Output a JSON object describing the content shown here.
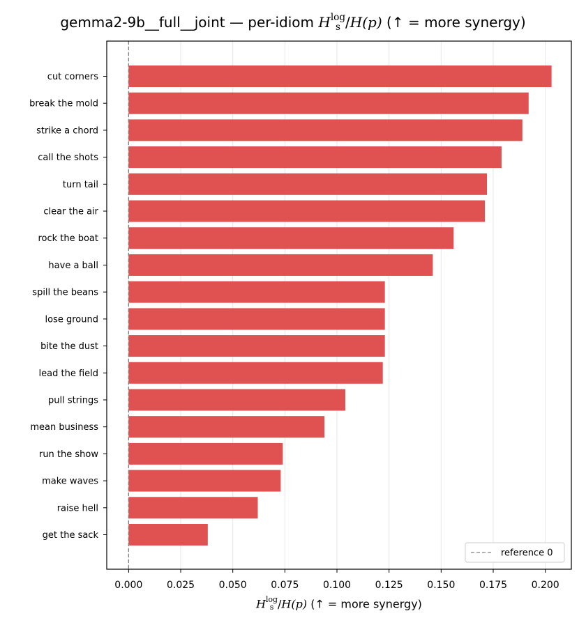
{
  "chart_data": {
    "type": "bar",
    "orientation": "horizontal",
    "title": {
      "prefix": "gemma2-9b__full__joint — per-idiom ",
      "suffix": "  (↑ = more synergy)"
    },
    "xlabel": {
      "suffix": "  (↑ = more synergy)"
    },
    "math": {
      "H": "H",
      "sup": "log",
      "sub": "s",
      "over": "/",
      "Hp": "H",
      "p": "(p)"
    },
    "categories": [
      "cut corners",
      "break the mold",
      "strike a chord",
      "call the shots",
      "turn tail",
      "clear the air",
      "rock the boat",
      "have a ball",
      "spill the beans",
      "lose ground",
      "bite the dust",
      "lead the field",
      "pull strings",
      "mean business",
      "run the show",
      "make waves",
      "raise hell",
      "get the sack"
    ],
    "values": [
      0.203,
      0.192,
      0.189,
      0.179,
      0.172,
      0.171,
      0.156,
      0.146,
      0.123,
      0.123,
      0.123,
      0.122,
      0.104,
      0.094,
      0.074,
      0.073,
      0.062,
      0.038
    ],
    "xlim": [
      -0.0105,
      0.2125
    ],
    "xticks": [
      "0.000",
      "0.025",
      "0.050",
      "0.075",
      "0.100",
      "0.125",
      "0.150",
      "0.175",
      "0.200"
    ],
    "grid": "vertical",
    "reference_line": {
      "value": 0,
      "label": "reference 0"
    },
    "legend_position": "lower-right",
    "colors": {
      "bar": "#e05252",
      "reference": "#808080",
      "grid": "#e6e6e6"
    }
  }
}
